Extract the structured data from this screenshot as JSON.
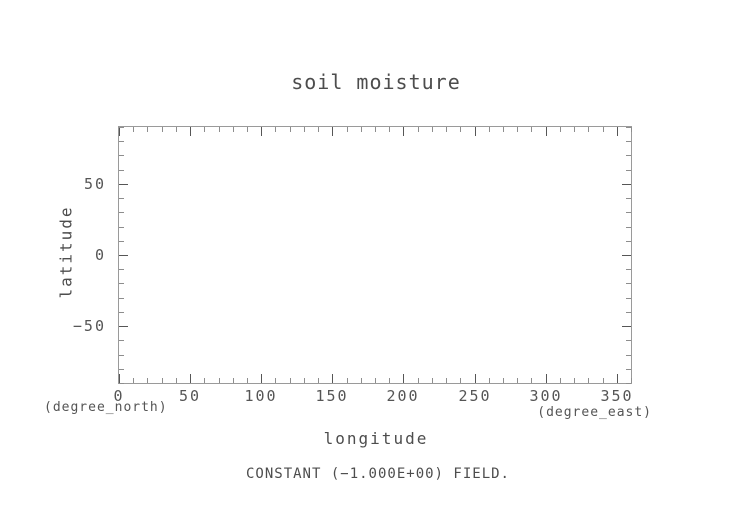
{
  "chart_data": {
    "type": "heatmap",
    "title": "soil moisture",
    "xlabel": "longitude",
    "x_unit": "(degree_east)",
    "ylabel": "latitude",
    "y_unit": "(degree_north)",
    "xlim": [
      0,
      360
    ],
    "ylim": [
      -90,
      90
    ],
    "x_major_ticks": [
      0,
      50,
      100,
      150,
      200,
      250,
      300,
      350
    ],
    "x_tick_labels": [
      "0",
      "50",
      "100",
      "150",
      "200",
      "250",
      "300",
      "350"
    ],
    "y_major_ticks": [
      50,
      0,
      -50
    ],
    "y_tick_labels": [
      "50",
      "0",
      "−50"
    ],
    "x_minor_interval": 10,
    "y_minor_interval": 10,
    "major_tick_step": 50,
    "grid": false,
    "series": [],
    "constant_value": -1.0,
    "plot_area_empty": true,
    "annotation": "CONSTANT (−1.000E+00) FIELD."
  }
}
